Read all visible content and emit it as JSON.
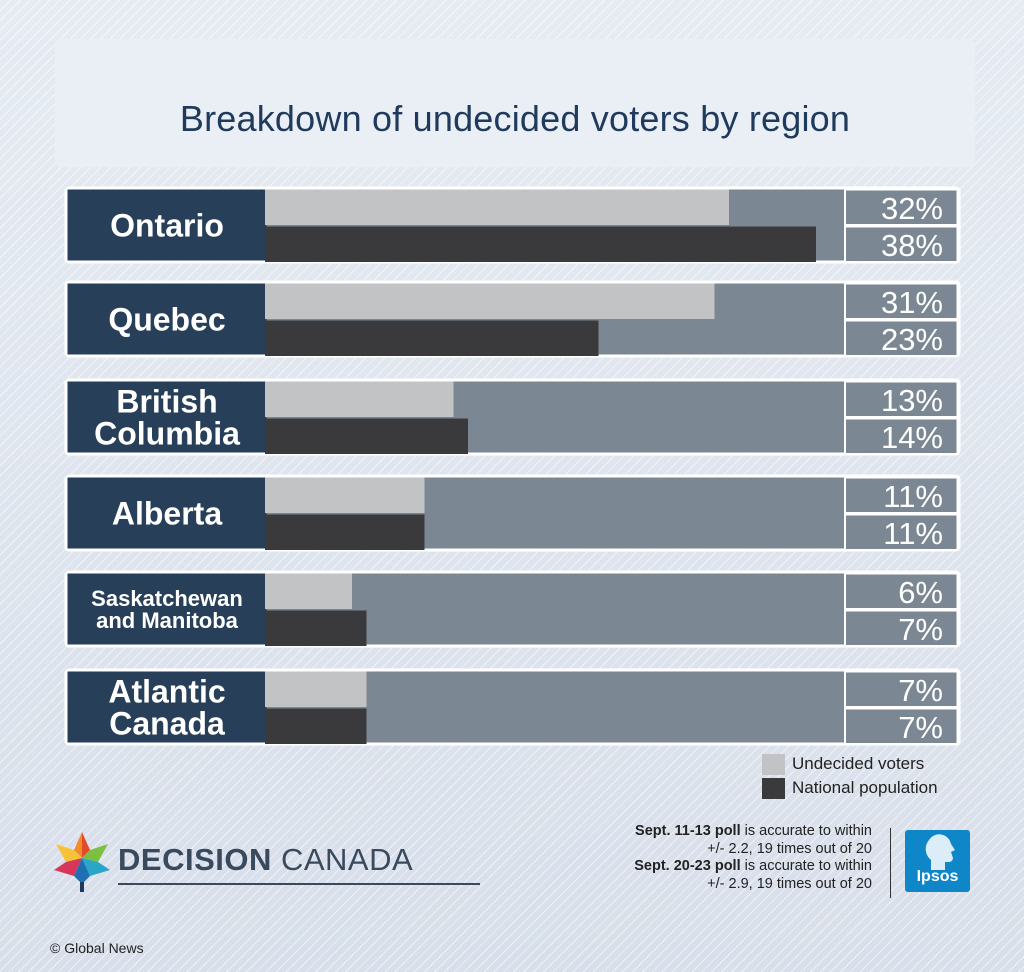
{
  "header": {
    "title": "Breakdown of undecided voters by region"
  },
  "chart_data": {
    "type": "bar",
    "orientation": "horizontal",
    "categories": [
      "Ontario",
      "Quebec",
      "British Columbia",
      "Alberta",
      "Saskatchewan and Manitoba",
      "Atlantic Canada"
    ],
    "series": [
      {
        "name": "Undecided voters",
        "values": [
          32,
          31,
          13,
          11,
          6,
          7
        ],
        "labels": [
          "32%",
          "31%",
          "13%",
          "11%",
          "6%",
          "7%"
        ]
      },
      {
        "name": "National population",
        "values": [
          38,
          23,
          14,
          11,
          7,
          7
        ],
        "labels": [
          "38%",
          "23%",
          "14%",
          "11%",
          "7%",
          "7%"
        ]
      }
    ],
    "xlim": [
      0,
      40
    ],
    "legend": "bottom-right"
  },
  "colors": {
    "undecided": "#c2c3c5",
    "national": "#3a3a3c",
    "track": "#7b8893",
    "label_bg": "#273f58",
    "value_bg": "#7b8893",
    "border": "#ffffff"
  },
  "legend": {
    "items": [
      {
        "label": "Undecided voters",
        "color": "#c2c3c5"
      },
      {
        "label": "National population",
        "color": "#3a3a3c"
      }
    ]
  },
  "logo": {
    "bold": "DECISION",
    "light": "CANADA",
    "icon": "maple-leaf-icon"
  },
  "notes": {
    "line1_bold": "Sept. 11-13 poll",
    "line1_rest": " is accurate to within",
    "line2": "+/- 2.2, 19 times out of 20",
    "line3_bold": "Sept. 20-23 poll",
    "line3_rest": " is accurate to within",
    "line4": "+/- 2.9, 19 times out of 20"
  },
  "ipsos": {
    "label": "Ipsos"
  },
  "credit": "© Global News"
}
